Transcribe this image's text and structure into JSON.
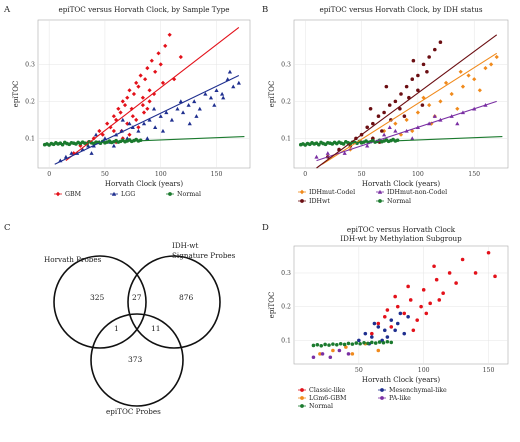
{
  "panel_labels": [
    "A",
    "B",
    "C",
    "D"
  ],
  "chart_data": [
    {
      "type": "scatter",
      "panel": "A",
      "title": "epiTOC versus Horvath Clock, by Sample Type",
      "xlabel": "Horvath Clock (years)",
      "ylabel": "epiTOC",
      "xticks": [
        0,
        50,
        100,
        150
      ],
      "yticks": [
        0.1,
        0.2,
        0.3
      ],
      "xlim": [
        -10,
        180
      ],
      "ylim": [
        0.02,
        0.42
      ],
      "legend_position": "bottom",
      "series": [
        {
          "name": "GBM",
          "color": "#e3111a",
          "shape": "diamond",
          "fit": [
            15,
            0.04,
            170,
            0.4
          ],
          "x": [
            22,
            28,
            35,
            40,
            45,
            48,
            52,
            55,
            58,
            60,
            62,
            64,
            66,
            68,
            70,
            72,
            74,
            76,
            78,
            80,
            82,
            84,
            86,
            88,
            90,
            92,
            95,
            98,
            100,
            104,
            108,
            112,
            118,
            60,
            65,
            70,
            75,
            80,
            85,
            90,
            72,
            78,
            84,
            94,
            102,
            58,
            66,
            88
          ],
          "y": [
            0.06,
            0.08,
            0.09,
            0.1,
            0.12,
            0.11,
            0.14,
            0.13,
            0.16,
            0.15,
            0.18,
            0.17,
            0.2,
            0.19,
            0.21,
            0.23,
            0.18,
            0.22,
            0.25,
            0.24,
            0.27,
            0.21,
            0.26,
            0.29,
            0.23,
            0.31,
            0.28,
            0.33,
            0.3,
            0.35,
            0.38,
            0.26,
            0.32,
            0.09,
            0.12,
            0.14,
            0.16,
            0.13,
            0.17,
            0.2,
            0.11,
            0.15,
            0.19,
            0.22,
            0.25,
            0.12,
            0.1,
            0.18
          ]
        },
        {
          "name": "LGG",
          "color": "#1f2f8f",
          "shape": "triangle",
          "fit": [
            5,
            0.03,
            170,
            0.27
          ],
          "x": [
            10,
            15,
            20,
            25,
            30,
            35,
            40,
            45,
            50,
            55,
            60,
            65,
            70,
            75,
            80,
            85,
            90,
            95,
            100,
            105,
            110,
            115,
            120,
            125,
            130,
            135,
            140,
            145,
            150,
            155,
            160,
            165,
            170,
            42,
            58,
            72,
            88,
            102,
            118,
            132,
            148,
            162,
            38,
            66,
            94,
            126,
            156
          ],
          "y": [
            0.04,
            0.05,
            0.06,
            0.06,
            0.07,
            0.08,
            0.08,
            0.09,
            0.1,
            0.09,
            0.11,
            0.12,
            0.1,
            0.13,
            0.12,
            0.14,
            0.15,
            0.13,
            0.16,
            0.17,
            0.15,
            0.18,
            0.17,
            0.19,
            0.2,
            0.18,
            0.22,
            0.21,
            0.23,
            0.22,
            0.26,
            0.24,
            0.25,
            0.11,
            0.08,
            0.14,
            0.1,
            0.12,
            0.2,
            0.16,
            0.19,
            0.28,
            0.06,
            0.15,
            0.18,
            0.14,
            0.21
          ]
        },
        {
          "name": "Normal",
          "color": "#1b7a2e",
          "shape": "circle",
          "fit": [
            -5,
            0.083,
            175,
            0.105
          ],
          "x": [
            -4,
            -2,
            0,
            2,
            4,
            6,
            8,
            10,
            12,
            14,
            16,
            18,
            20,
            22,
            24,
            26,
            28,
            30,
            32,
            34,
            36,
            38,
            40,
            42,
            44,
            46,
            48,
            50,
            52,
            54,
            56,
            58,
            60,
            62,
            64,
            66,
            68,
            70,
            72,
            74,
            76,
            78,
            80,
            82
          ],
          "y": [
            0.083,
            0.085,
            0.082,
            0.086,
            0.084,
            0.088,
            0.085,
            0.087,
            0.083,
            0.089,
            0.086,
            0.084,
            0.088,
            0.087,
            0.085,
            0.089,
            0.086,
            0.09,
            0.087,
            0.085,
            0.091,
            0.088,
            0.086,
            0.09,
            0.089,
            0.087,
            0.092,
            0.088,
            0.09,
            0.093,
            0.089,
            0.091,
            0.094,
            0.09,
            0.092,
            0.095,
            0.091,
            0.093,
            0.096,
            0.092,
            0.094,
            0.097,
            0.093,
            0.095
          ]
        }
      ]
    },
    {
      "type": "scatter",
      "panel": "B",
      "title": "epiTOC versus Horvath Clock, by IDH status",
      "xlabel": "Horvath Clock (years)",
      "ylabel": "epiTOC",
      "xticks": [
        0,
        50,
        100,
        150
      ],
      "yticks": [
        0.1,
        0.2,
        0.3
      ],
      "xlim": [
        -10,
        180
      ],
      "ylim": [
        0.02,
        0.42
      ],
      "legend_position": "bottom",
      "series": [
        {
          "name": "IDHmut-Codel",
          "color": "#f08a1c",
          "shape": "diamond",
          "fit": [
            15,
            0.03,
            170,
            0.33
          ],
          "x": [
            40,
            50,
            60,
            70,
            80,
            90,
            100,
            110,
            120,
            130,
            140,
            150,
            160,
            170,
            95,
            105,
            115,
            125,
            135,
            145,
            155,
            165,
            85,
            112,
            138
          ],
          "y": [
            0.07,
            0.09,
            0.1,
            0.12,
            0.14,
            0.15,
            0.17,
            0.19,
            0.2,
            0.22,
            0.24,
            0.26,
            0.29,
            0.32,
            0.12,
            0.21,
            0.16,
            0.25,
            0.18,
            0.27,
            0.23,
            0.3,
            0.11,
            0.14,
            0.28
          ]
        },
        {
          "name": "IDHmut-non-Codel",
          "color": "#7a2fa3",
          "shape": "triangle",
          "fit": [
            10,
            0.04,
            170,
            0.2
          ],
          "x": [
            10,
            20,
            30,
            40,
            50,
            60,
            70,
            80,
            90,
            100,
            110,
            120,
            130,
            140,
            150,
            160,
            35,
            55,
            75,
            95,
            115,
            135
          ],
          "y": [
            0.05,
            0.06,
            0.07,
            0.08,
            0.09,
            0.1,
            0.11,
            0.12,
            0.12,
            0.13,
            0.14,
            0.15,
            0.16,
            0.17,
            0.18,
            0.19,
            0.06,
            0.08,
            0.13,
            0.1,
            0.16,
            0.14
          ]
        },
        {
          "name": "IDHwt",
          "color": "#6b0e12",
          "shape": "circle",
          "fit": [
            10,
            0.02,
            170,
            0.38
          ],
          "x": [
            20,
            30,
            40,
            45,
            50,
            55,
            60,
            65,
            70,
            75,
            80,
            85,
            90,
            95,
            100,
            105,
            110,
            115,
            120,
            60,
            68,
            76,
            84,
            92,
            100,
            108,
            72,
            88,
            96,
            104,
            58,
            66
          ],
          "y": [
            0.05,
            0.07,
            0.08,
            0.1,
            0.11,
            0.13,
            0.14,
            0.16,
            0.17,
            0.19,
            0.2,
            0.22,
            0.24,
            0.26,
            0.27,
            0.3,
            0.32,
            0.34,
            0.36,
            0.1,
            0.12,
            0.15,
            0.18,
            0.21,
            0.23,
            0.28,
            0.24,
            0.16,
            0.31,
            0.19,
            0.18,
            0.09
          ]
        },
        {
          "name": "Normal",
          "color": "#1b7a2e",
          "shape": "circle",
          "fit": [
            -5,
            0.083,
            175,
            0.105
          ],
          "x": [
            -4,
            -2,
            0,
            2,
            4,
            6,
            8,
            10,
            12,
            14,
            16,
            18,
            20,
            22,
            24,
            26,
            28,
            30,
            32,
            34,
            36,
            38,
            40,
            42,
            44,
            46,
            48,
            50,
            52,
            54,
            56,
            58,
            60,
            62,
            64,
            66,
            68,
            70,
            72,
            74,
            76,
            78,
            80,
            82
          ],
          "y": [
            0.083,
            0.085,
            0.082,
            0.086,
            0.084,
            0.088,
            0.085,
            0.087,
            0.083,
            0.089,
            0.086,
            0.084,
            0.088,
            0.087,
            0.085,
            0.089,
            0.086,
            0.09,
            0.087,
            0.085,
            0.091,
            0.088,
            0.086,
            0.09,
            0.089,
            0.087,
            0.092,
            0.088,
            0.09,
            0.093,
            0.089,
            0.091,
            0.094,
            0.09,
            0.092,
            0.095,
            0.091,
            0.093,
            0.096,
            0.092,
            0.094,
            0.097,
            0.093,
            0.095
          ]
        }
      ]
    },
    {
      "type": "scatter",
      "panel": "D",
      "title": "epiTOC versus Horvath Clock",
      "subtitle": "IDH-wt by Methylation Subgroup",
      "xlabel": "Horvath Clock (years)",
      "ylabel": "epiTOC",
      "xticks": [
        50,
        100,
        150
      ],
      "yticks": [
        0.1,
        0.2,
        0.3
      ],
      "xlim": [
        0,
        165
      ],
      "ylim": [
        0.03,
        0.38
      ],
      "legend_position": "bottom",
      "series": [
        {
          "name": "Classic-like",
          "color": "#e3111a",
          "shape": "circle",
          "x": [
            60,
            65,
            70,
            75,
            80,
            85,
            90,
            95,
            100,
            105,
            110,
            115,
            120,
            72,
            78,
            88,
            98,
            108,
            125,
            130,
            140,
            150,
            155,
            92,
            102,
            112
          ],
          "y": [
            0.12,
            0.15,
            0.17,
            0.14,
            0.2,
            0.18,
            0.22,
            0.16,
            0.25,
            0.21,
            0.28,
            0.24,
            0.3,
            0.19,
            0.23,
            0.26,
            0.2,
            0.32,
            0.27,
            0.34,
            0.3,
            0.36,
            0.29,
            0.13,
            0.18,
            0.22
          ]
        },
        {
          "name": "Mesenchymal-like",
          "color": "#1f2f8f",
          "shape": "circle",
          "x": [
            50,
            55,
            60,
            65,
            70,
            75,
            80,
            85,
            58,
            68,
            78,
            88,
            62,
            72,
            82
          ],
          "y": [
            0.1,
            0.12,
            0.11,
            0.14,
            0.13,
            0.16,
            0.15,
            0.12,
            0.09,
            0.1,
            0.13,
            0.17,
            0.15,
            0.11,
            0.18
          ]
        },
        {
          "name": "LGm6-GBM",
          "color": "#f08a1c",
          "shape": "circle",
          "x": [
            20,
            30,
            40,
            45,
            55,
            65
          ],
          "y": [
            0.06,
            0.07,
            0.08,
            0.06,
            0.09,
            0.07
          ]
        },
        {
          "name": "PA-like",
          "color": "#7a2fa3",
          "shape": "circle",
          "x": [
            15,
            22,
            28,
            35,
            42
          ],
          "y": [
            0.05,
            0.06,
            0.05,
            0.07,
            0.06
          ]
        },
        {
          "name": "Normal",
          "color": "#1b7a2e",
          "shape": "circle",
          "x": [
            15,
            18,
            21,
            24,
            27,
            30,
            33,
            36,
            39,
            42,
            45,
            48,
            51,
            54,
            57,
            60,
            63,
            66,
            69,
            72,
            75
          ],
          "y": [
            0.085,
            0.087,
            0.084,
            0.088,
            0.086,
            0.089,
            0.087,
            0.09,
            0.088,
            0.091,
            0.089,
            0.092,
            0.09,
            0.093,
            0.091,
            0.094,
            0.092,
            0.095,
            0.093,
            0.096,
            0.094
          ]
        }
      ]
    }
  ],
  "venn": {
    "labels": {
      "horvath": "Horvath Probes",
      "idh_line1": "IDH-wt",
      "idh_line2": "Signature Probes",
      "epitoc": "epiTOC Probes"
    },
    "counts": {
      "horvath_only": "325",
      "idh_only": "876",
      "epitoc_only": "373",
      "horvath_idh": "27",
      "horvath_epitoc": "1",
      "idh_epitoc": "11"
    }
  }
}
